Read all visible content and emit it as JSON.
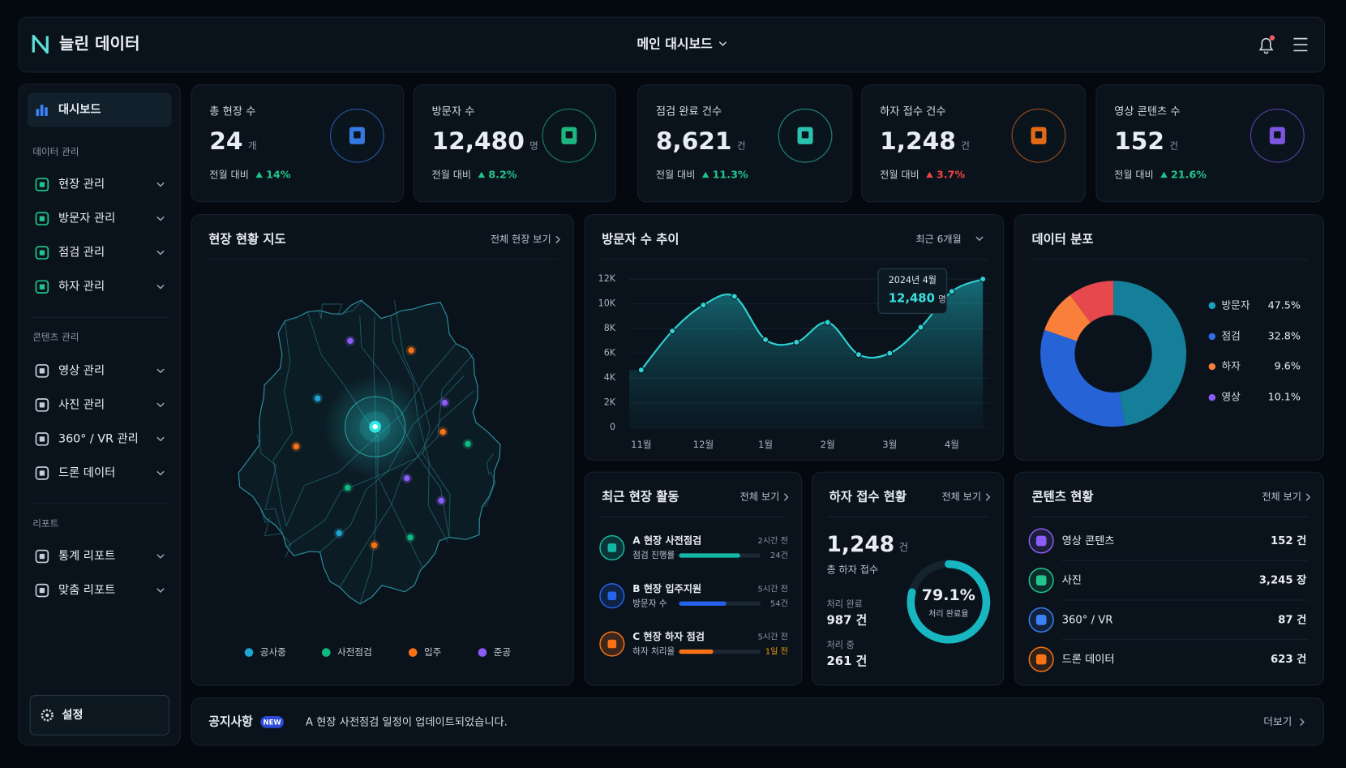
{
  "header": {
    "brand": "늘린 데이터",
    "view": "메인 대시보드"
  },
  "sidebar": {
    "active": "대시보드",
    "groups": [
      {
        "title": "데이터 관리",
        "color": "#22c58b",
        "items": [
          "현장 관리",
          "방문자 관리",
          "점검 관리",
          "하자 관리"
        ]
      },
      {
        "title": "콘텐츠 관리",
        "color": "#c5ced8",
        "items": [
          "영상 관리",
          "사진 관리",
          "360° / VR 관리",
          "드론 데이터"
        ]
      },
      {
        "title": "리포트",
        "color": "#c5ced8",
        "items": [
          "통계 리포트",
          "맞춤 리포트"
        ]
      }
    ],
    "settings": "설정"
  },
  "kpis": [
    {
      "label": "총 현장 수",
      "value": "24",
      "unit": "개",
      "compare": "전월 대비",
      "change": "14%",
      "change_color": "#22c58b",
      "color": "#3b82f6"
    },
    {
      "label": "방문자 수",
      "value": "12,480",
      "unit": "명",
      "compare": "전월 대비",
      "change": "8.2%",
      "change_color": "#22c58b",
      "color": "#22c58b"
    },
    {
      "label": "점검 완료 건수",
      "value": "8,621",
      "unit": "건",
      "compare": "전월 대비",
      "change": "11.3%",
      "change_color": "#22c58b",
      "color": "#2dd4bf"
    },
    {
      "label": "하자 접수 건수",
      "value": "1,248",
      "unit": "건",
      "compare": "전월 대비",
      "change": "3.7%",
      "change_color": "#ef4444",
      "color": "#f97316"
    },
    {
      "label": "영상 콘텐츠 수",
      "value": "152",
      "unit": "건",
      "compare": "전월 대비",
      "change": "21.6%",
      "change_color": "#22c58b",
      "color": "#8b5cf6"
    }
  ],
  "map": {
    "title": "현장 현황 지도",
    "link": "전체 현장 보기",
    "legend": [
      {
        "name": "공사중",
        "color": "#1ea5d0"
      },
      {
        "name": "사전점검",
        "color": "#10b981"
      },
      {
        "name": "입주",
        "color": "#f97316"
      },
      {
        "name": "준공",
        "color": "#8b5cf6"
      }
    ]
  },
  "visitor_trend": {
    "type": "line",
    "title": "방문자 수 추이",
    "period": "최근 6개월",
    "categories": [
      "11월",
      null,
      "12월",
      null,
      "1월",
      null,
      "2월",
      null,
      "3월",
      null,
      "4월",
      null
    ],
    "values": [
      4650,
      7800,
      9900,
      10600,
      7100,
      6900,
      8500,
      5900,
      6000,
      8100,
      11000,
      12000
    ],
    "color": "#2fd4d4",
    "ylim": [
      0,
      12000
    ],
    "yticks": [
      0,
      {
        "value": 2000,
        "label": "2K"
      },
      {
        "value": 4000,
        "label": "4K"
      },
      {
        "value": 6000,
        "label": "6K"
      },
      {
        "value": 8000,
        "label": "8K"
      },
      {
        "value": 10000,
        "label": "10K"
      },
      {
        "value": 12000,
        "label": "12K"
      }
    ],
    "grid": true,
    "tooltip": {
      "date": "2024년 4월",
      "value": "12,480",
      "unit": "명"
    }
  },
  "distribution": {
    "type": "pie",
    "title": "데이터 분포",
    "categories": [
      "방문자",
      "점검",
      "하자",
      "영상"
    ],
    "values": [
      47.5,
      32.8,
      9.6,
      10.1
    ],
    "value_labels": [
      "47.5%",
      "32.8%",
      "9.6%",
      "10.1%"
    ],
    "colors": [
      "#157f9a",
      "#2563d6",
      "#f97f3a",
      "#e5484d"
    ],
    "legend_colors": [
      "#1aa3c0",
      "#2f6fe4",
      "#f97f3a",
      "#8b5cf6"
    ],
    "donut": true
  },
  "activity": {
    "title": "최근 현장 활동",
    "link": "전체 보기",
    "items": [
      {
        "name": "A 현장 사전점검",
        "metric": "점검 진행률",
        "progress": 75,
        "time": "2시간 전",
        "count": "24건",
        "color": "#14b8a6"
      },
      {
        "name": "B 현장 입주지원",
        "metric": "방문자 수",
        "progress": 58,
        "time": "5시간 전",
        "count": "54건",
        "color": "#2563eb"
      },
      {
        "name": "C 현장 하자 점검",
        "metric": "하자 처리율",
        "progress": 42,
        "time": "5시간 전",
        "count": "1일 전",
        "color": "#f97316"
      }
    ]
  },
  "defects": {
    "title": "하자 접수 현황",
    "link": "전체 보기",
    "total": "1,248",
    "unit": "건",
    "total_label": "총 하자 접수",
    "done_label": "처리 완료",
    "done": "987 건",
    "pending_label": "처리 중",
    "pending": "261 건",
    "rate": 79.1,
    "rate_label": "79.1%",
    "rate_caption": "처리 완료율"
  },
  "content": {
    "title": "콘텐츠 현황",
    "link": "전체 보기",
    "items": [
      {
        "name": "영상 콘텐츠",
        "value": "152 건",
        "color": "#8b5cf6"
      },
      {
        "name": "사진",
        "value": "3,245 장",
        "color": "#22c58b"
      },
      {
        "name": "360° / VR",
        "value": "87 건",
        "color": "#3b82f6"
      },
      {
        "name": "드론 데이터",
        "value": "623 건",
        "color": "#f97316"
      }
    ]
  },
  "notice": {
    "title": "공지사항",
    "badge": "NEW",
    "text": "A 현장 사전점검 일정이 업데이트되었습니다.",
    "more": "더보기"
  }
}
